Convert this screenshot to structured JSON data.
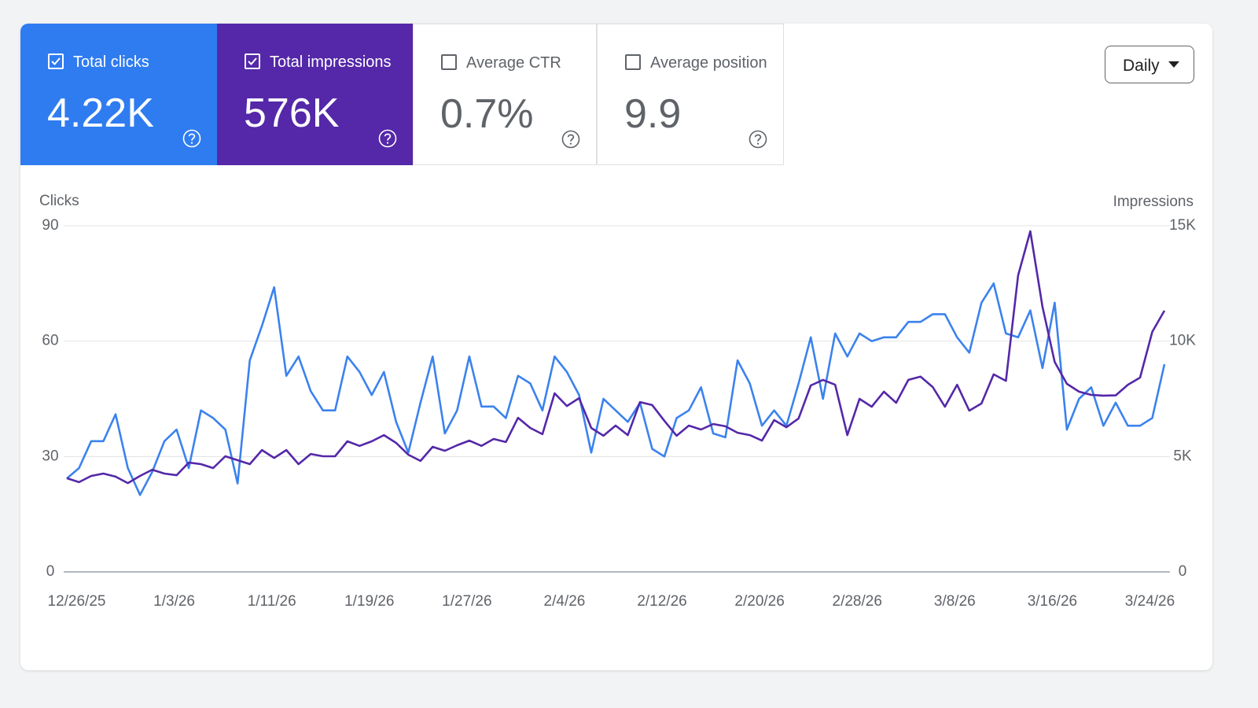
{
  "metrics": [
    {
      "value": "4.22K",
      "selected": true,
      "color": "#2f7cf0"
    },
    {
      "value": "576K",
      "selected": true,
      "color": "#5428a8"
    },
    {
      "label": "Average CTR",
      "value": "0.7%",
      "selected": false
    },
    {
      "label": "Average position",
      "value": "9.9",
      "selected": false
    }
  ],
  "granularity": "Daily",
  "chart_data": {
    "type": "line",
    "y_label": "Clicks",
    "y2_label": "Impressions",
    "categories": [
      null,
      "12/26/25",
      null,
      null,
      null,
      null,
      null,
      null,
      null,
      "1/3/26",
      null,
      null,
      null,
      null,
      null,
      null,
      null,
      "1/11/26",
      null,
      null,
      null,
      null,
      null,
      null,
      null,
      "1/19/26",
      null,
      null,
      null,
      null,
      null,
      null,
      null,
      "1/27/26",
      null,
      null,
      null,
      null,
      null,
      null,
      null,
      "2/4/26",
      null,
      null,
      null,
      null,
      null,
      null,
      null,
      "2/12/26",
      null,
      null,
      null,
      null,
      null,
      null,
      null,
      "2/20/26",
      null,
      null,
      null,
      null,
      null,
      null,
      null,
      "2/28/26",
      null,
      null,
      null,
      null,
      null,
      null,
      null,
      "3/8/26",
      null,
      null,
      null,
      null,
      null,
      null,
      null,
      "3/16/26",
      null,
      null,
      null,
      null,
      null,
      null,
      null,
      "3/24/26",
      null
    ],
    "series": [
      {
        "name": "Total clicks",
        "color": "#3b82ee",
        "values": [
          24.3,
          27,
          34,
          34,
          41,
          27,
          20,
          26,
          34,
          37,
          27,
          42,
          40,
          37,
          23,
          55,
          64,
          74,
          51,
          56,
          47,
          42,
          42,
          56,
          52,
          46,
          52,
          39,
          31,
          44,
          56,
          36,
          42,
          56,
          43,
          43,
          40,
          51,
          49,
          42,
          56,
          52,
          46,
          31,
          45,
          42,
          39,
          44,
          32,
          30,
          40,
          42,
          48,
          36,
          35,
          55,
          49,
          38,
          42,
          38,
          49,
          61,
          45,
          62,
          56,
          62,
          60,
          61,
          61,
          65,
          65,
          67,
          67,
          61,
          57,
          70,
          75,
          62,
          61,
          68,
          53,
          70,
          37,
          45,
          48,
          38,
          44,
          38,
          38,
          40,
          54
        ]
      },
      {
        "name": "Total impressions",
        "color": "#5428a8",
        "axis": "y2",
        "values": [
          4060,
          3890,
          4160,
          4260,
          4130,
          3850,
          4160,
          4430,
          4260,
          4190,
          4740,
          4670,
          4500,
          5010,
          4840,
          4670,
          5280,
          4940,
          5280,
          4670,
          5110,
          5010,
          5010,
          5660,
          5460,
          5660,
          5930,
          5590,
          5080,
          4810,
          5420,
          5250,
          5490,
          5690,
          5460,
          5760,
          5630,
          6680,
          6240,
          5970,
          7740,
          7190,
          7530,
          6240,
          5900,
          6340,
          5930,
          7360,
          7230,
          6550,
          5900,
          6340,
          6170,
          6410,
          6310,
          6030,
          5930,
          5690,
          6580,
          6270,
          6650,
          8080,
          8320,
          8110,
          5930,
          7500,
          7160,
          7810,
          7330,
          8320,
          8460,
          8010,
          7160,
          8110,
          6990,
          7300,
          8560,
          8280,
          12850,
          14760,
          11490,
          9100,
          8150,
          7810,
          7670,
          7640,
          7650,
          8110,
          8420,
          10400,
          11320
        ]
      }
    ],
    "ylim": [
      0,
      90
    ],
    "yticks": [
      0,
      30,
      60,
      90
    ],
    "y2lim": [
      0,
      15000
    ],
    "y2ticks": [
      0,
      {
        "value": 5000,
        "label": "5K"
      },
      {
        "value": 10000,
        "label": "10K"
      },
      {
        "value": 15000,
        "label": "15K"
      }
    ],
    "grid": true
  }
}
